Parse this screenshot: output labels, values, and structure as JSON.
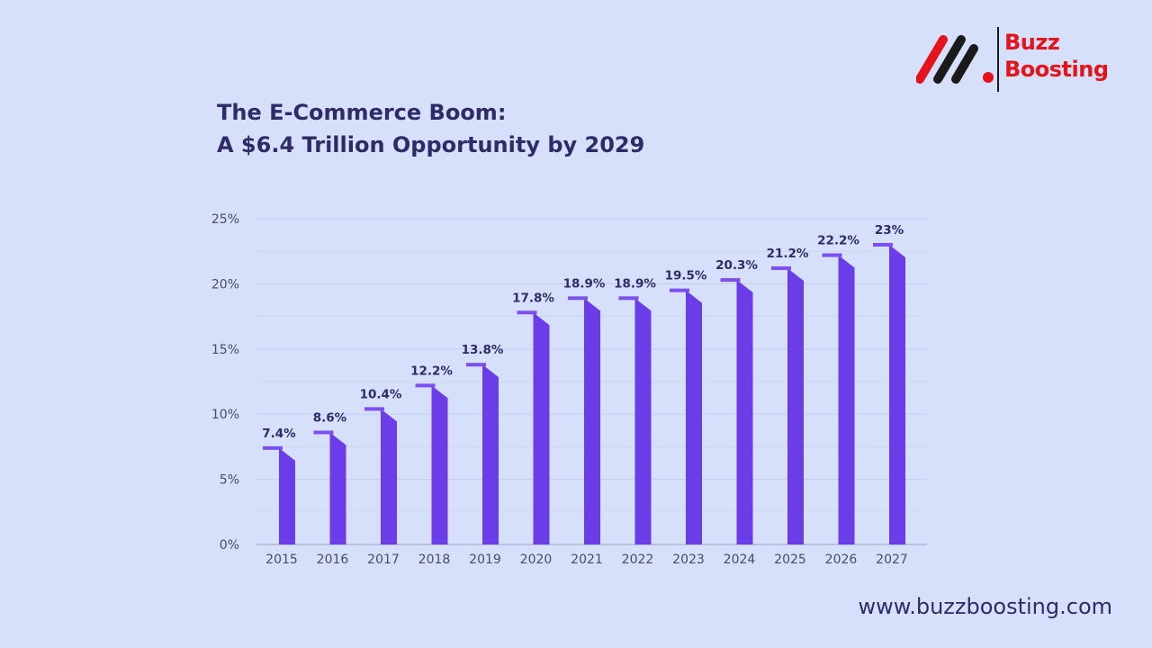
{
  "header": {
    "title_line1": "The E-Commerce Boom:",
    "title_line2": "A $6.4 Trillion Opportunity by 2029"
  },
  "brand": {
    "name_line1": "Buzz",
    "name_line2": "Boosting",
    "color": "#e3141b"
  },
  "footer": {
    "url": "www.buzzboosting.com"
  },
  "chart_data": {
    "type": "bar",
    "categories": [
      "2015",
      "2016",
      "2017",
      "2018",
      "2019",
      "2020",
      "2021",
      "2022",
      "2023",
      "2024",
      "2025",
      "2026",
      "2027"
    ],
    "values": [
      7.4,
      8.6,
      10.4,
      12.2,
      13.8,
      17.8,
      18.9,
      18.9,
      19.5,
      20.3,
      21.2,
      22.2,
      23
    ],
    "data_labels": [
      "7.4%",
      "8.6%",
      "10.4%",
      "12.2%",
      "13.8%",
      "17.8%",
      "18.9%",
      "18.9%",
      "19.5%",
      "20.3%",
      "21.2%",
      "22.2%",
      "23%"
    ],
    "yticks": [
      0,
      5,
      10,
      15,
      20,
      25
    ],
    "ytick_labels": [
      "0%",
      "5%",
      "10%",
      "15%",
      "20%",
      "25%"
    ],
    "ylim": [
      0,
      25
    ],
    "grid": true,
    "legend": "none",
    "bar_color": "#6a3de8",
    "cap_color": "#7b4ff0"
  }
}
